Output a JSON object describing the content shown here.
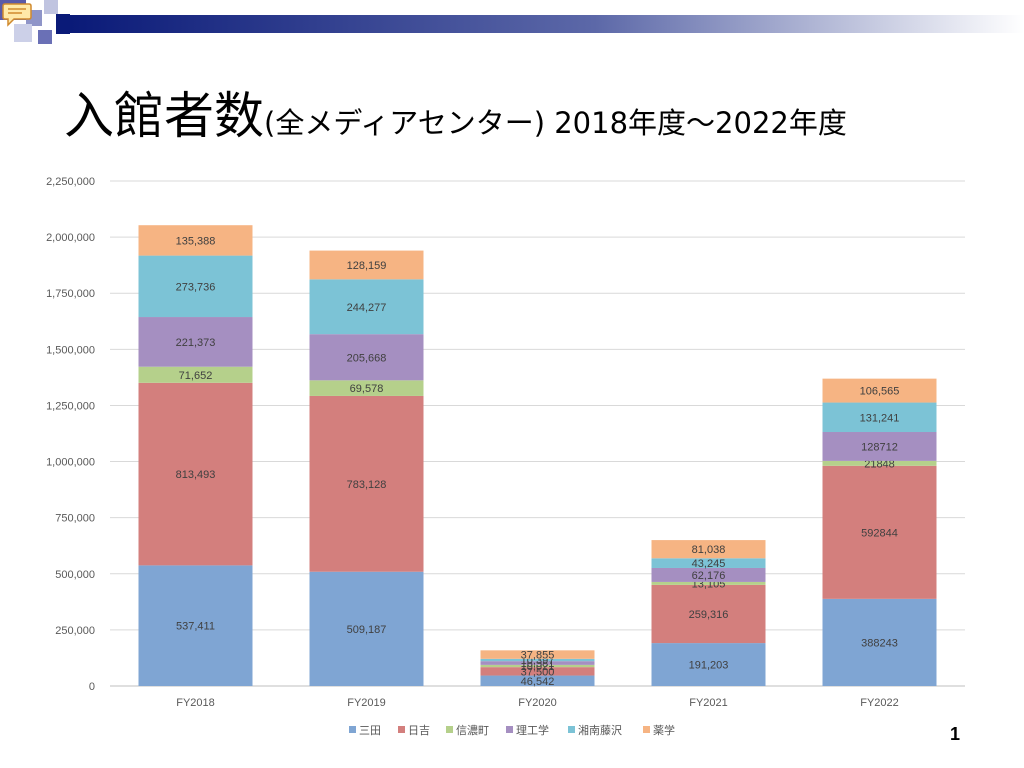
{
  "slide": {
    "title_main": "入館者数",
    "title_sub": "(全メディアセンター) 2018年度～2022年度",
    "page_number": "1"
  },
  "chart_data": {
    "type": "bar",
    "stacked": true,
    "categories": [
      "FY2018",
      "FY2019",
      "FY2020",
      "FY2021",
      "FY2022"
    ],
    "ylim": [
      0,
      2250000
    ],
    "yticks": [
      0,
      250000,
      500000,
      750000,
      1000000,
      1250000,
      1500000,
      1750000,
      2000000,
      2250000
    ],
    "ytick_labels": [
      "0",
      "250,000",
      "500,000",
      "750,000",
      "1,000,000",
      "1,250,000",
      "1,500,000",
      "1,750,000",
      "2,000,000",
      "2,250,000"
    ],
    "grid": true,
    "legend_position": "bottom",
    "series": [
      {
        "name": "三田",
        "color": "#7fa5d3",
        "values": [
          537411,
          509187,
          46542,
          191203,
          388243
        ],
        "labels": [
          "537,411",
          "509,187",
          "46,542",
          "191,203",
          "388243"
        ]
      },
      {
        "name": "日吉",
        "color": "#d37f7d",
        "values": [
          813493,
          783128,
          37500,
          259316,
          592844
        ],
        "labels": [
          "813,493",
          "783,128",
          "37,500",
          "259,316",
          "592844"
        ]
      },
      {
        "name": "信濃町",
        "color": "#b5d08b",
        "values": [
          71652,
          69578,
          10021,
          13105,
          21848
        ],
        "labels": [
          "71,652",
          "69,578",
          "10,021",
          "13,105",
          "21848"
        ]
      },
      {
        "name": "理工学",
        "color": "#a58fc1",
        "values": [
          221373,
          205668,
          16581,
          62176,
          128712
        ],
        "labels": [
          "221,373",
          "205,668",
          "16,581",
          "62,176",
          "128712"
        ]
      },
      {
        "name": "湘南藤沢",
        "color": "#7cc3d6",
        "values": [
          273736,
          244277,
          10397,
          43245,
          131241
        ],
        "labels": [
          "273,736",
          "244,277",
          "10,397",
          "43,245",
          "131,241"
        ]
      },
      {
        "name": "薬学",
        "color": "#f6b483",
        "values": [
          135388,
          128159,
          37855,
          81038,
          106565
        ],
        "labels": [
          "135,388",
          "128,159",
          "37,855",
          "81,038",
          "106,565"
        ]
      }
    ]
  }
}
